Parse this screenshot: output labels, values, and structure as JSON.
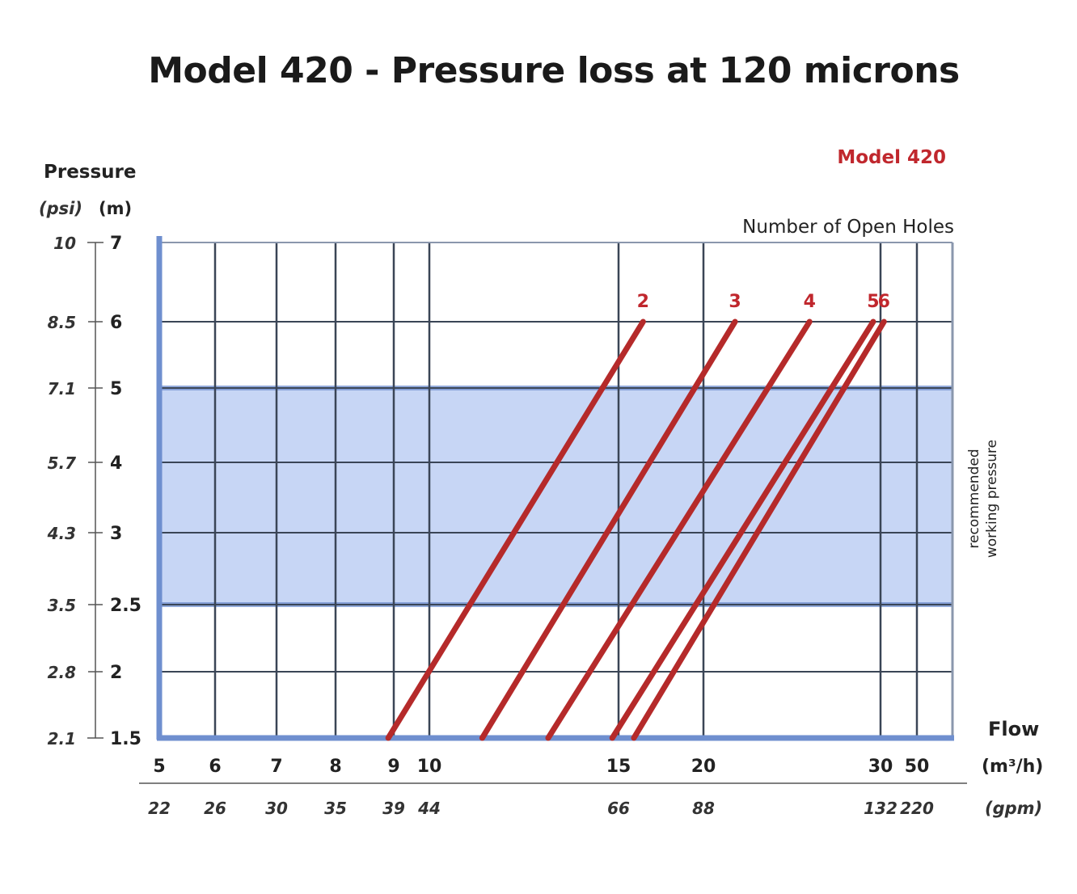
{
  "chart_data": {
    "type": "line",
    "title": "Model 420 - Pressure loss at 120 microns",
    "legend_title": "Model 420",
    "legend_subtitle": "Number of Open Holes",
    "y_title": "Pressure",
    "y_unit_psi": "(psi)",
    "y_unit_m": "(m)",
    "x_title": "Flow",
    "x_unit_m3h": "(m³/h)",
    "x_unit_gpm": "(gpm)",
    "band_label_1": "recommended",
    "band_label_2": "working pressure",
    "y_ticks_m": [
      "7",
      "6",
      "5",
      "4",
      "3",
      "2.5",
      "2",
      "1.5"
    ],
    "y_ticks_psi": [
      "10",
      "8.5",
      "7.1",
      "5.7",
      "4.3",
      "3.5",
      "2.8",
      "2.1"
    ],
    "x_ticks_m3h": [
      "5",
      "6",
      "7",
      "8",
      "9",
      "10",
      "15",
      "20",
      "30",
      "50"
    ],
    "x_ticks_gpm": [
      "22",
      "26",
      "30",
      "35",
      "39",
      "44",
      "66",
      "88",
      "132",
      "220"
    ],
    "recommended_band_m": [
      2.5,
      5
    ],
    "ylim_m": [
      1.5,
      7
    ],
    "series": [
      {
        "name": "2",
        "x_start": 8.9,
        "y_start": 1.5,
        "x_end": 16.3,
        "y_end": 6
      },
      {
        "name": "3",
        "x_start": 11.2,
        "y_start": 1.5,
        "x_end": 21.5,
        "y_end": 6
      },
      {
        "name": "4",
        "x_start": 12.9,
        "y_start": 1.5,
        "x_end": 25.5,
        "y_end": 6
      },
      {
        "name": "5",
        "x_start": 14.8,
        "y_start": 1.5,
        "x_end": 29.5,
        "y_end": 6
      },
      {
        "name": "6",
        "x_start": 15.8,
        "y_start": 1.5,
        "x_end": 31.5,
        "y_end": 6
      }
    ],
    "colors": {
      "series": "#b52a2a",
      "band": "#c7d6f5",
      "grid": "#3a4556",
      "axis": "#6f8fcf",
      "label_red": "#c0272d"
    }
  }
}
